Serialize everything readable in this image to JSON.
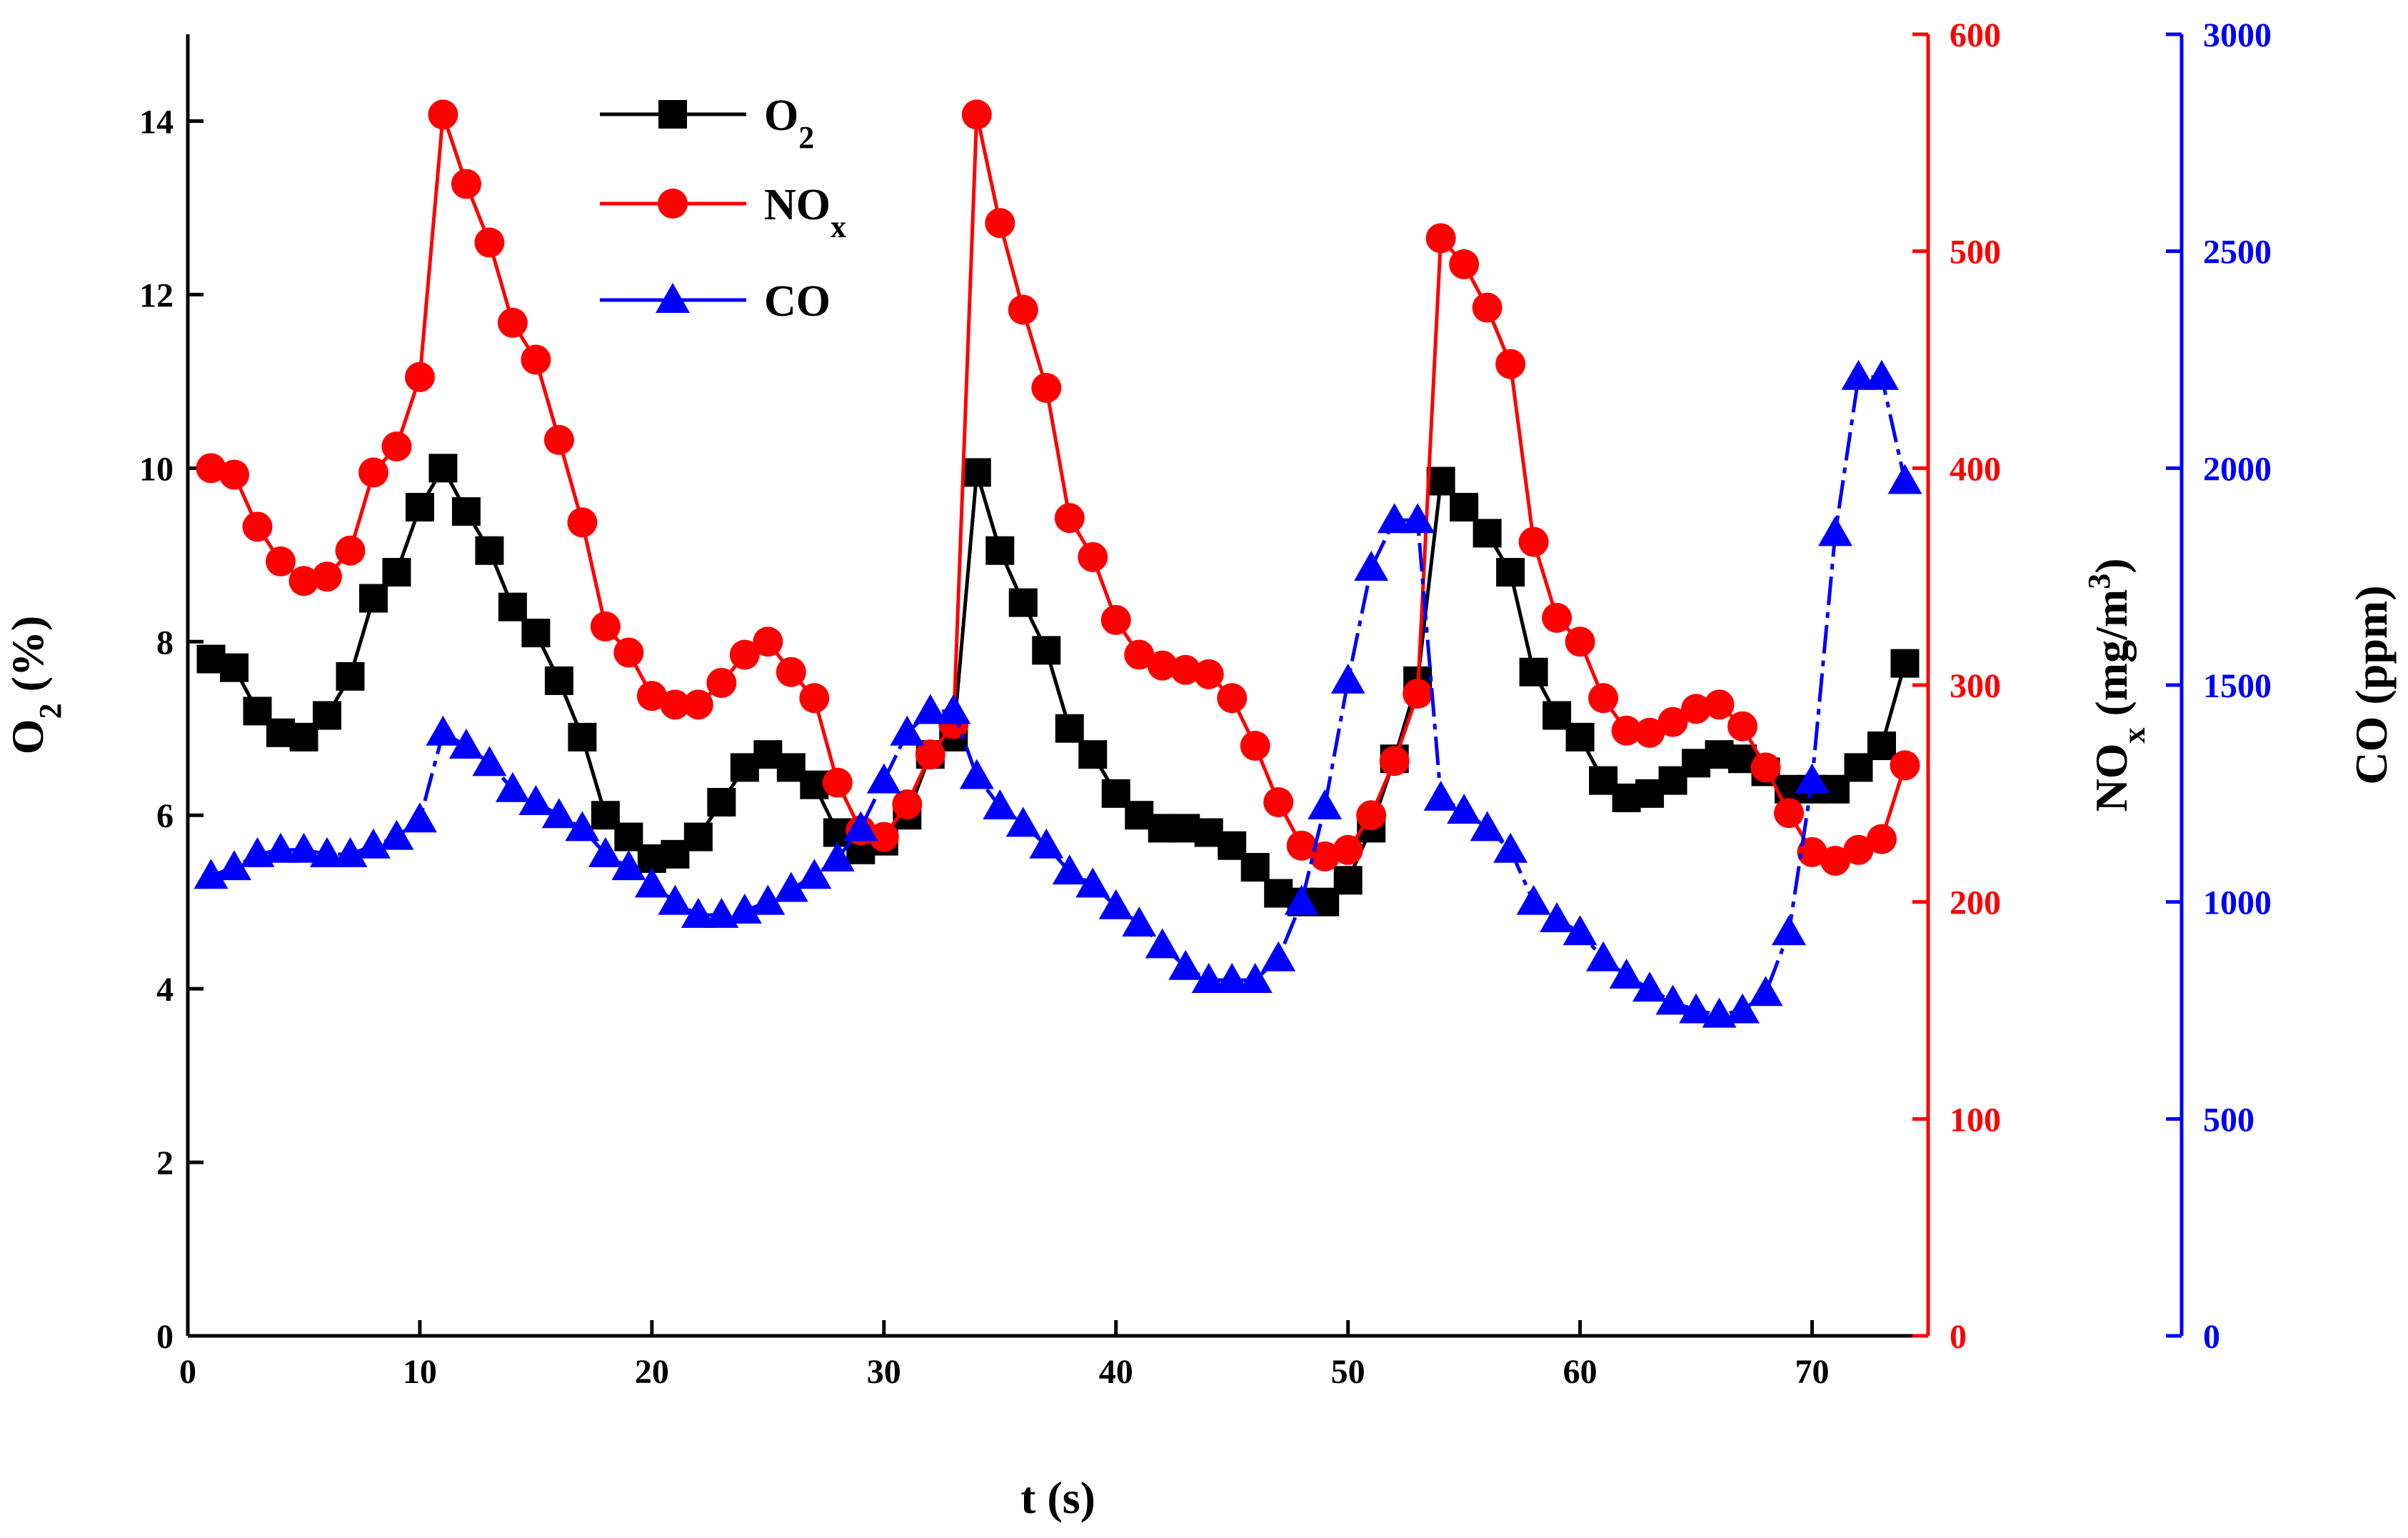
{
  "chart_data": {
    "type": "line",
    "title": "",
    "xlabel": "t (s)",
    "xlim": [
      0,
      75
    ],
    "xticks": [
      0,
      10,
      20,
      30,
      40,
      50,
      60,
      70
    ],
    "x": [
      1,
      2,
      3,
      4,
      5,
      6,
      7,
      8,
      9,
      10,
      11,
      12,
      13,
      14,
      15,
      16,
      17,
      18,
      19,
      20,
      21,
      22,
      23,
      24,
      25,
      26,
      27,
      28,
      29,
      30,
      31,
      32,
      33,
      34,
      35,
      36,
      37,
      38,
      39,
      40,
      41,
      42,
      43,
      44,
      45,
      46,
      47,
      48,
      49,
      50,
      51,
      52,
      53,
      54,
      55,
      56,
      57,
      58,
      59,
      60,
      61,
      62,
      63,
      64,
      65,
      66,
      67,
      68,
      69,
      70,
      71,
      72,
      73,
      74
    ],
    "axes": [
      {
        "id": "o2",
        "label_main": "O",
        "label_sub": "2",
        "label_rest": " (%)",
        "ylim": [
          0,
          15
        ],
        "ticks": [
          0,
          2,
          4,
          6,
          8,
          10,
          12,
          14
        ],
        "color": "#000000"
      },
      {
        "id": "nox",
        "label_main": "NO",
        "label_sub": "x",
        "label_rest": " (mg/m",
        "label_sup": "3",
        "label_end": ")",
        "ylim": [
          0,
          600
        ],
        "ticks": [
          0,
          100,
          200,
          300,
          400,
          500,
          600
        ],
        "color": "#ff0000"
      },
      {
        "id": "co",
        "label_main": "CO (ppm)",
        "ylim": [
          0,
          3000
        ],
        "ticks": [
          0,
          500,
          1000,
          1500,
          2000,
          2500,
          3000
        ],
        "color": "#0000ff"
      }
    ],
    "series": [
      {
        "name": "O2",
        "legend_main": "O",
        "legend_sub": "2",
        "axis": "o2",
        "color": "#000000",
        "marker": "square",
        "dashed": false,
        "values": [
          7.8,
          7.7,
          7.2,
          6.95,
          6.9,
          7.15,
          7.6,
          8.5,
          8.8,
          9.55,
          10.0,
          9.5,
          9.05,
          8.4,
          8.1,
          7.55,
          6.9,
          6.0,
          5.75,
          5.5,
          5.55,
          5.75,
          6.15,
          6.55,
          6.7,
          6.55,
          6.35,
          5.8,
          5.6,
          5.7,
          6.0,
          6.7,
          6.9,
          9.95,
          9.05,
          8.45,
          7.9,
          7.0,
          6.7,
          6.25,
          6.0,
          5.85,
          5.85,
          5.8,
          5.65,
          5.4,
          5.1,
          5.0,
          5.0,
          5.25,
          5.85,
          6.65,
          7.55,
          9.85,
          9.55,
          9.25,
          8.8,
          7.65,
          7.15,
          6.9,
          6.4,
          6.2,
          6.25,
          6.4,
          6.6,
          6.7,
          6.65,
          6.5,
          6.3,
          6.3,
          6.3,
          6.55,
          6.8,
          7.75
        ]
      },
      {
        "name": "NOx",
        "legend_main": "NO",
        "legend_sub": "x",
        "axis": "nox",
        "color": "#ff0000",
        "marker": "circle",
        "dashed": false,
        "values": [
          400,
          397,
          373,
          357,
          348,
          350,
          362,
          398,
          410,
          442,
          563,
          531,
          504,
          467,
          450,
          413,
          375,
          327,
          315,
          295,
          291,
          291,
          301,
          314,
          320,
          306,
          294,
          255,
          233,
          230,
          245,
          268,
          282,
          563,
          513,
          473,
          437,
          377,
          359,
          330,
          314,
          309,
          307,
          305,
          294,
          272,
          246,
          226,
          221,
          224,
          240,
          265,
          296,
          506,
          494,
          474,
          448,
          366,
          331,
          320,
          294,
          279,
          278,
          283,
          289,
          291,
          281,
          262,
          241,
          223,
          219,
          224,
          229,
          263
        ]
      },
      {
        "name": "CO",
        "legend_main": "CO",
        "axis": "co",
        "color": "#0000ff",
        "marker": "triangle",
        "dashed": true,
        "values": [
          1060,
          1080,
          1110,
          1120,
          1120,
          1110,
          1110,
          1130,
          1150,
          1190,
          1390,
          1360,
          1320,
          1260,
          1230,
          1200,
          1170,
          1110,
          1080,
          1040,
          1000,
          970,
          970,
          980,
          1000,
          1030,
          1060,
          1100,
          1170,
          1280,
          1390,
          1440,
          1440,
          1290,
          1220,
          1180,
          1130,
          1070,
          1040,
          990,
          950,
          900,
          850,
          820,
          820,
          820,
          870,
          1000,
          1220,
          1510,
          1770,
          1880,
          1880,
          1240,
          1210,
          1170,
          1120,
          1000,
          960,
          930,
          870,
          830,
          800,
          770,
          750,
          740,
          750,
          790,
          930,
          1280,
          1850,
          2210,
          2210,
          1970
        ]
      }
    ],
    "legend": "top-left"
  }
}
